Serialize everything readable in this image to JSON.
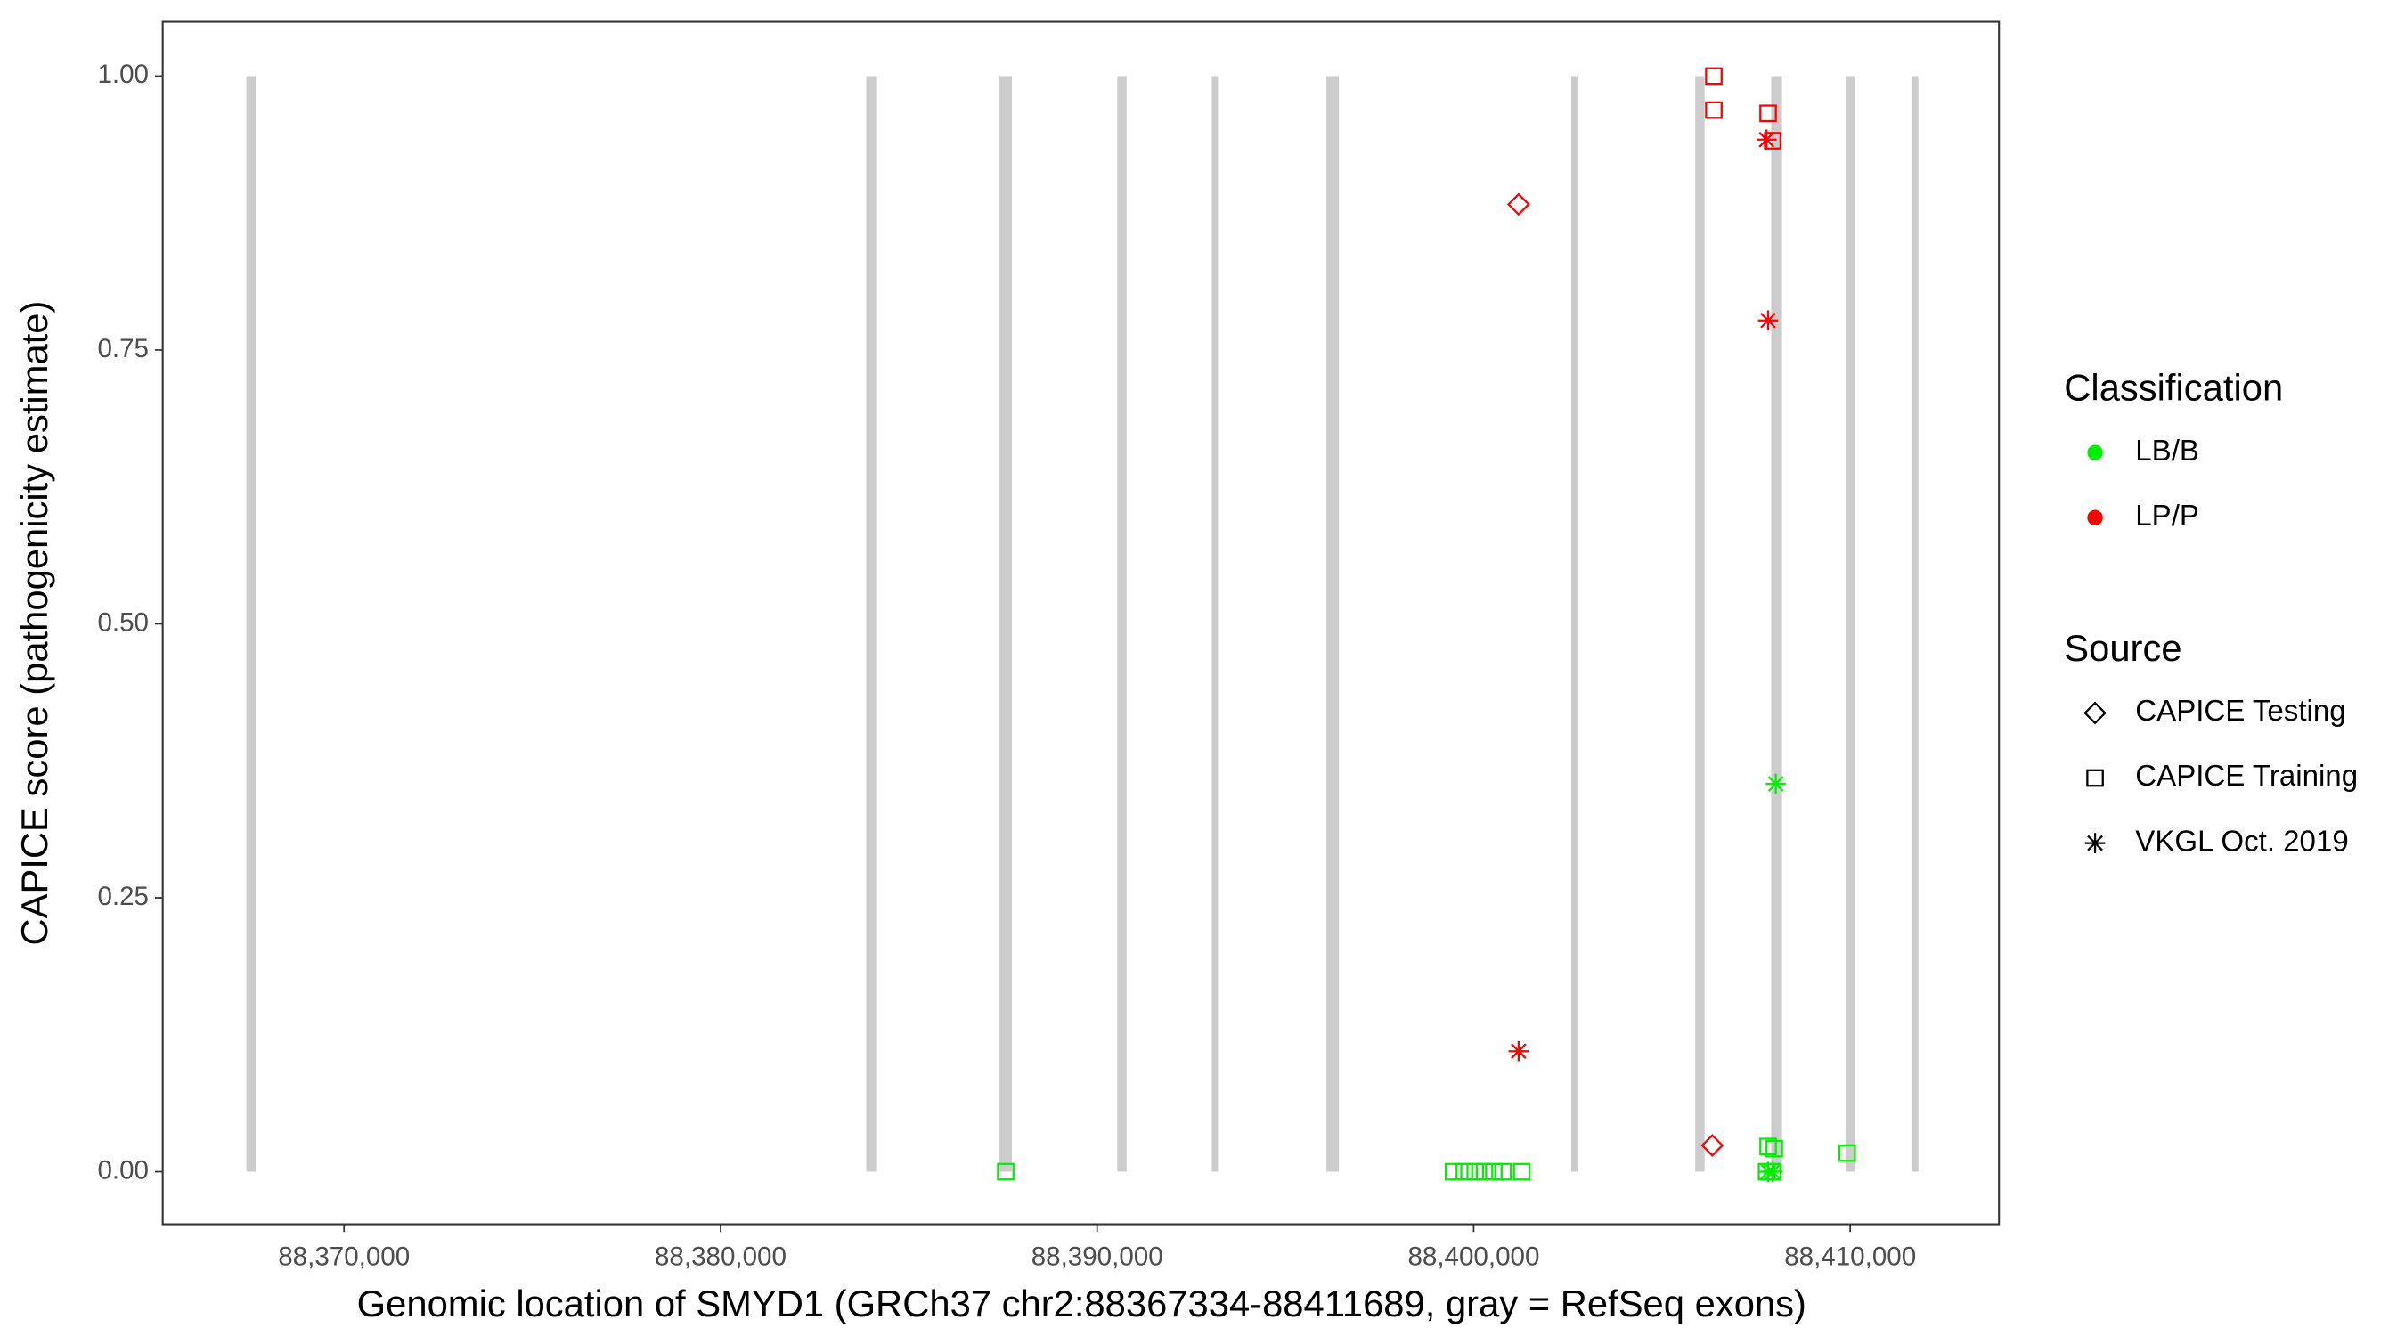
{
  "chart_data": {
    "type": "scatter",
    "xlabel": "Genomic location of SMYD1 (GRCh37 chr2:88367334-88411689, gray = RefSeq exons)",
    "ylabel": "CAPICE score (pathogenicity estimate)",
    "xlim": [
      88365185,
      88413951
    ],
    "ylim": [
      -0.048,
      1.0495
    ],
    "xticks": [
      {
        "value": 88370000,
        "label": "88,370,000"
      },
      {
        "value": 88380000,
        "label": "88,380,000"
      },
      {
        "value": 88390000,
        "label": "88,390,000"
      },
      {
        "value": 88400000,
        "label": "88,400,000"
      },
      {
        "value": 88410000,
        "label": "88,410,000"
      }
    ],
    "yticks": [
      {
        "value": 0,
        "label": "0.00"
      },
      {
        "value": 0.25,
        "label": "0.25"
      },
      {
        "value": 0.5,
        "label": "0.50"
      },
      {
        "value": 0.75,
        "label": "0.75"
      },
      {
        "value": 1,
        "label": "1.00"
      }
    ],
    "exon_color": "#cccccc",
    "exons": [
      [
        88367407,
        88367655
      ],
      [
        88383868,
        88384156
      ],
      [
        88387407,
        88387736
      ],
      [
        88390535,
        88390782
      ],
      [
        88393045,
        88393210
      ],
      [
        88396090,
        88396420
      ],
      [
        88402592,
        88402757
      ],
      [
        88405885,
        88406132
      ],
      [
        88407901,
        88408189
      ],
      [
        88409876,
        88410123
      ],
      [
        88411646,
        88411811
      ]
    ],
    "color_legend": {
      "title": "Classification",
      "items": [
        {
          "name": "LB/B",
          "color": "#00ee00"
        },
        {
          "name": "LP/P",
          "color": "#ff0000"
        }
      ]
    },
    "shape_legend": {
      "title": "Source",
      "items": [
        {
          "name": "CAPICE Testing",
          "shape": "diamond"
        },
        {
          "name": "CAPICE Training",
          "shape": "square"
        },
        {
          "name": "VKGL Oct. 2019",
          "shape": "star"
        }
      ]
    },
    "series": [
      {
        "color": "#ff0000",
        "shape": "diamond",
        "x": [
          88401193,
          88406337
        ],
        "values": [
          0.883,
          0.024
        ]
      },
      {
        "color": "#ff0000",
        "shape": "square",
        "x": [
          88406378,
          88406378,
          88407819,
          88407942
        ],
        "values": [
          1.0,
          0.969,
          0.966,
          0.941
        ]
      },
      {
        "color": "#ff0000",
        "shape": "star",
        "x": [
          88407778,
          88407819,
          88401193
        ],
        "values": [
          0.942,
          0.777,
          0.11
        ]
      },
      {
        "color": "#00ee00",
        "shape": "star",
        "x": [
          88408024,
          88407819,
          88407942
        ],
        "values": [
          0.354,
          0,
          0
        ]
      },
      {
        "color": "#00ee00",
        "shape": "square",
        "x": [
          88387572,
          88399465,
          88399753,
          88400041,
          88400288,
          88400535,
          88400782,
          88401276,
          88407819,
          88407983,
          88407778,
          88407942,
          88409918
        ],
        "values": [
          0,
          0,
          0,
          0,
          0,
          0,
          0,
          0,
          0.023,
          0.021,
          0,
          0,
          0.017
        ]
      }
    ]
  }
}
